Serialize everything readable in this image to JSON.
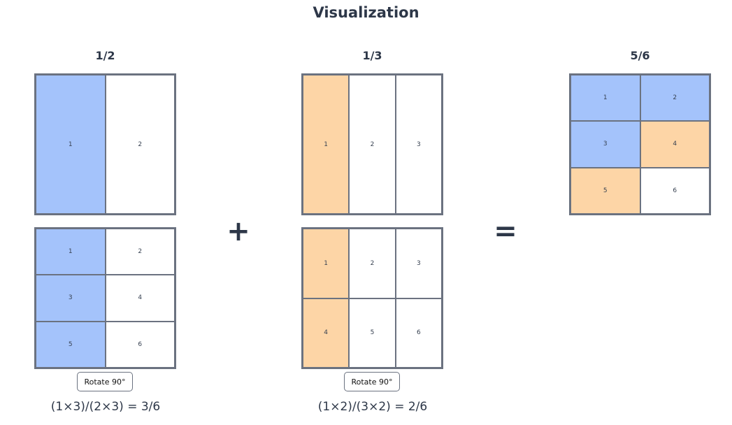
{
  "title": "Visualization",
  "columns": [
    {
      "label": "1/2",
      "grids": [
        {
          "rows": 1,
          "cols": 2,
          "cells": [
            "1",
            "2"
          ],
          "fills": [
            "#a4c3fb",
            "#ffffff"
          ]
        },
        {
          "rows": 3,
          "cols": 2,
          "cells": [
            "1",
            "2",
            "3",
            "4",
            "5",
            "6"
          ],
          "fills": [
            "#a4c3fb",
            "#ffffff",
            "#a4c3fb",
            "#ffffff",
            "#a4c3fb",
            "#ffffff"
          ]
        }
      ],
      "button": "Rotate 90°",
      "formula": "(1×3)/(2×3) = 3/6"
    },
    {
      "label": "1/3",
      "grids": [
        {
          "rows": 1,
          "cols": 3,
          "cells": [
            "1",
            "2",
            "3"
          ],
          "fills": [
            "#fdd5a6",
            "#ffffff",
            "#ffffff"
          ]
        },
        {
          "rows": 2,
          "cols": 3,
          "cells": [
            "1",
            "2",
            "3",
            "4",
            "5",
            "6"
          ],
          "fills": [
            "#fdd5a6",
            "#ffffff",
            "#ffffff",
            "#fdd5a6",
            "#ffffff",
            "#ffffff"
          ]
        }
      ],
      "button": "Rotate 90°",
      "formula": "(1×2)/(3×2) = 2/6"
    },
    {
      "label": "5/6",
      "grids": [
        {
          "rows": 3,
          "cols": 2,
          "cells": [
            "1",
            "2",
            "3",
            "4",
            "5",
            "6"
          ],
          "fills": [
            "#a4c3fb",
            "#a4c3fb",
            "#a4c3fb",
            "#fdd5a6",
            "#fdd5a6",
            "#ffffff"
          ]
        }
      ]
    }
  ],
  "operators": [
    "+",
    "="
  ]
}
